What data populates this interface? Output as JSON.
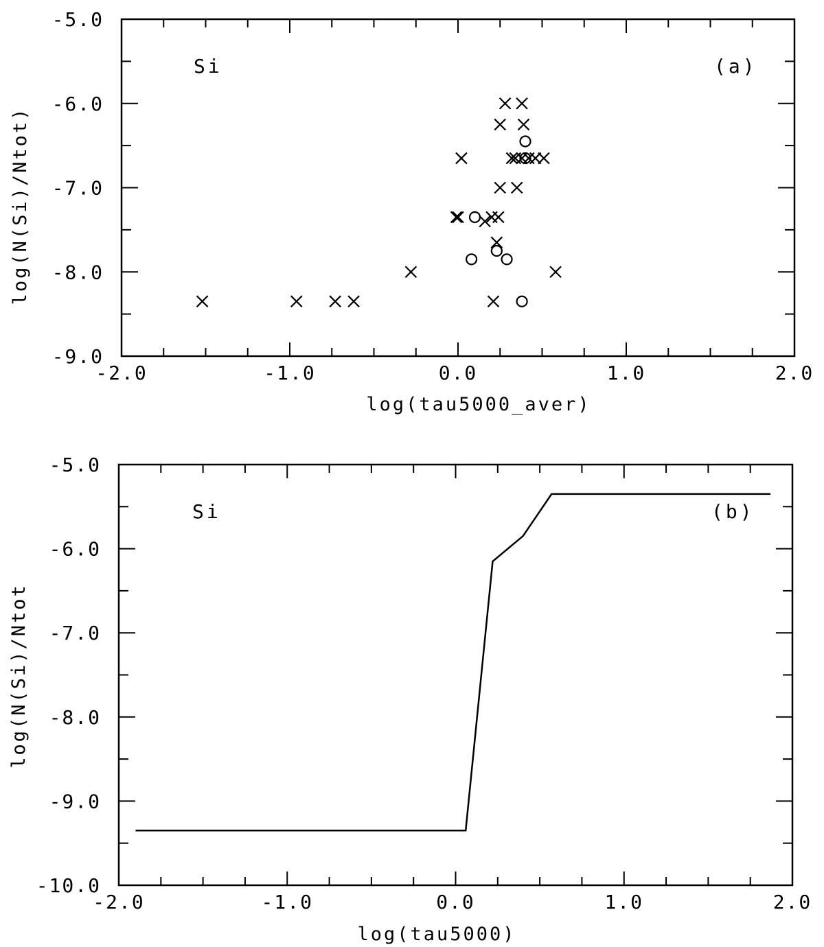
{
  "chart_data": [
    {
      "type": "scatter",
      "panel_label": "(a)",
      "annotation": "Si",
      "xlabel": "log(tau5000_aver)",
      "ylabel": "log(N(Si)/Ntot)",
      "xlim": [
        -2.0,
        2.0
      ],
      "ylim": [
        -9.0,
        -5.0
      ],
      "x_ticks": [
        -2.0,
        -1.0,
        0.0,
        1.0,
        2.0
      ],
      "x_tick_labels": [
        "-2.0",
        "-1.0",
        "0.0",
        "1.0",
        "2.0"
      ],
      "y_ticks": [
        -9.0,
        -8.0,
        -7.0,
        -6.0,
        -5.0
      ],
      "y_tick_labels": [
        "-9.0",
        "-8.0",
        "-7.0",
        "-6.0",
        "-5.0"
      ],
      "series": [
        {
          "marker": "x",
          "points": [
            [
              -1.52,
              -8.35
            ],
            [
              -0.96,
              -8.35
            ],
            [
              -0.73,
              -8.35
            ],
            [
              -0.62,
              -8.35
            ],
            [
              -0.28,
              -8.0
            ],
            [
              -0.01,
              -7.35
            ],
            [
              0.0,
              -7.35
            ],
            [
              0.02,
              -6.65
            ],
            [
              0.16,
              -7.4
            ],
            [
              0.2,
              -7.35
            ],
            [
              0.21,
              -8.35
            ],
            [
              0.23,
              -7.65
            ],
            [
              0.24,
              -7.35
            ],
            [
              0.25,
              -7.0
            ],
            [
              0.25,
              -6.25
            ],
            [
              0.28,
              -6.0
            ],
            [
              0.32,
              -6.65
            ],
            [
              0.34,
              -6.65
            ],
            [
              0.35,
              -7.0
            ],
            [
              0.38,
              -6.65
            ],
            [
              0.38,
              -6.0
            ],
            [
              0.39,
              -6.25
            ],
            [
              0.42,
              -6.65
            ],
            [
              0.46,
              -6.65
            ],
            [
              0.51,
              -6.65
            ],
            [
              0.58,
              -8.0
            ]
          ]
        },
        {
          "marker": "o",
          "points": [
            [
              0.08,
              -7.85
            ],
            [
              0.1,
              -7.35
            ],
            [
              0.23,
              -7.75
            ],
            [
              0.29,
              -7.85
            ],
            [
              0.38,
              -8.35
            ],
            [
              0.4,
              -6.45
            ],
            [
              0.4,
              -6.65
            ]
          ]
        }
      ]
    },
    {
      "type": "line",
      "panel_label": "(b)",
      "annotation": "Si",
      "xlabel": "log(tau5000)",
      "ylabel": "log(N(Si)/Ntot",
      "xlim": [
        -2.0,
        2.0
      ],
      "ylim": [
        -10.0,
        -5.0
      ],
      "x_ticks": [
        -2.0,
        -1.0,
        0.0,
        1.0,
        2.0
      ],
      "x_tick_labels": [
        "-2.0",
        "-1.0",
        "0.0",
        "1.0",
        "2.0"
      ],
      "y_ticks": [
        -10.0,
        -9.0,
        -8.0,
        -7.0,
        -6.0,
        -5.0
      ],
      "y_tick_labels": [
        "-10.0",
        "-9.0",
        "-8.0",
        "-7.0",
        "-6.0",
        "-5.0"
      ],
      "series": [
        {
          "x": [
            -1.9,
            0.06,
            0.22,
            0.4,
            0.57,
            1.87
          ],
          "y": [
            -9.35,
            -9.35,
            -6.15,
            -5.85,
            -5.35,
            -5.35
          ]
        }
      ]
    }
  ]
}
